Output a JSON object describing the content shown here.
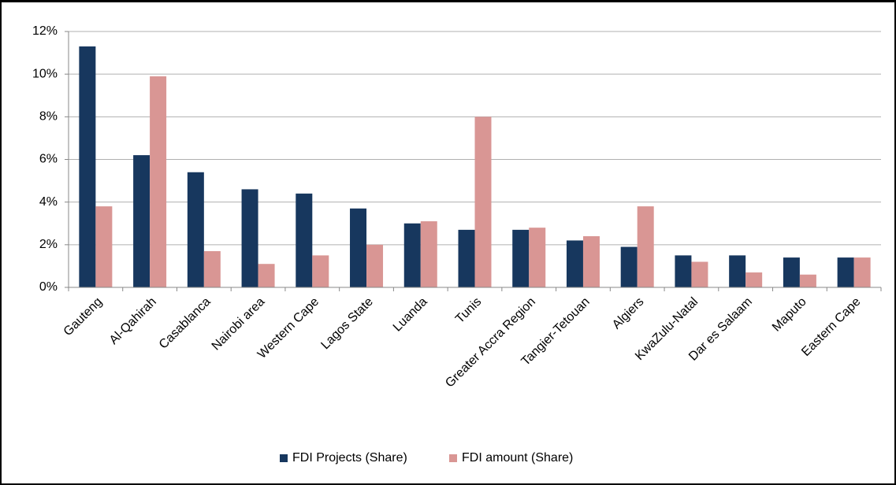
{
  "chart_data": {
    "type": "bar",
    "categories": [
      "Gauteng",
      "Al-Qahirah",
      "Casablanca",
      "Nairobi area",
      "Western Cape",
      "Lagos State",
      "Luanda",
      "Tunis",
      "Greater Accra Region",
      "Tangier-Tetouan",
      "Algiers",
      "KwaZulu-Natal",
      "Dar es Salaam",
      "Maputo",
      "Eastern Cape"
    ],
    "series": [
      {
        "name": "FDI Projects (Share)",
        "color": "#17375e",
        "values": [
          11.3,
          6.2,
          5.4,
          4.6,
          4.4,
          3.7,
          3.0,
          2.7,
          2.7,
          2.2,
          1.9,
          1.5,
          1.5,
          1.4,
          1.4
        ]
      },
      {
        "name": "FDI amount (Share)",
        "color": "#d99694",
        "values": [
          3.8,
          9.9,
          1.7,
          1.1,
          1.5,
          2.0,
          3.1,
          8.0,
          2.8,
          2.4,
          3.8,
          1.2,
          0.7,
          0.6,
          1.4
        ]
      }
    ],
    "ylim": [
      0,
      12
    ],
    "yticks": [
      {
        "value": 0,
        "label": "0%"
      },
      {
        "value": 2,
        "label": "2%"
      },
      {
        "value": 4,
        "label": "4%"
      },
      {
        "value": 6,
        "label": "6%"
      },
      {
        "value": 8,
        "label": "8%"
      },
      {
        "value": 10,
        "label": "10%"
      },
      {
        "value": 12,
        "label": "12%"
      }
    ],
    "grid": true,
    "legend": "bottom"
  }
}
